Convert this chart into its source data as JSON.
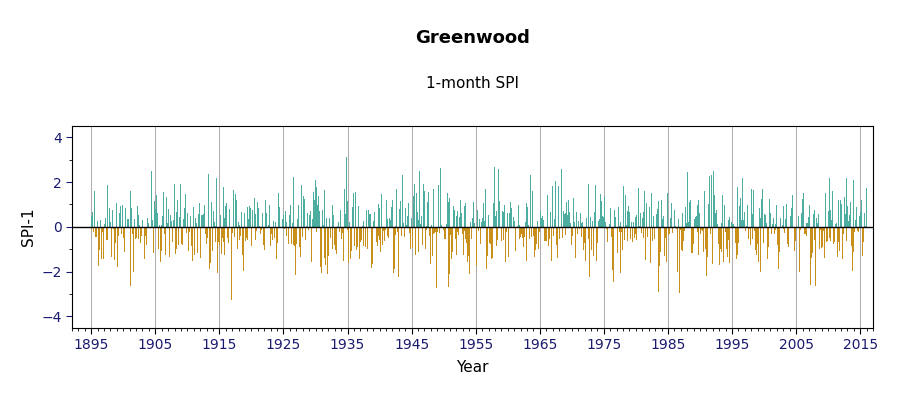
{
  "title": "Greenwood",
  "subtitle": "1-month SPI",
  "xlabel": "Year",
  "ylabel": "SPI-1",
  "ylim": [
    -4.5,
    4.5
  ],
  "yticks": [
    -4,
    -2,
    0,
    2,
    4
  ],
  "start_year": 1895,
  "end_year": 2016,
  "color_positive": "#4DADA0",
  "color_negative": "#C8901A",
  "vgrid_color": "#AAAAAA",
  "vgrid_years": [
    1895,
    1905,
    1915,
    1925,
    1935,
    1945,
    1955,
    1965,
    1975,
    1985,
    1995,
    2005,
    2015
  ],
  "xticks": [
    1895,
    1905,
    1915,
    1925,
    1935,
    1945,
    1955,
    1965,
    1975,
    1985,
    1995,
    2005,
    2015
  ],
  "seed": 42,
  "n_months": 1452,
  "title_fontsize": 13,
  "subtitle_fontsize": 11,
  "axis_label_fontsize": 11,
  "tick_fontsize": 10,
  "tick_color": "#1A1A6E",
  "background_color": "#FFFFFF",
  "xlim_left": 1892,
  "xlim_right": 2017
}
